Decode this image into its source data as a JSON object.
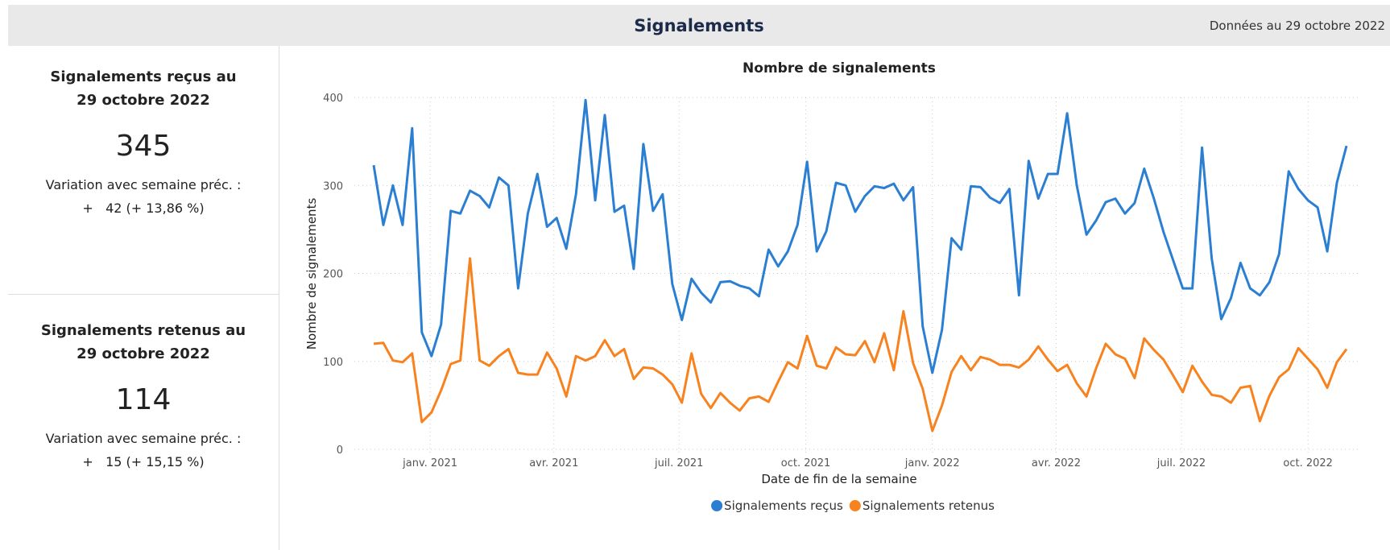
{
  "header": {
    "title": "Signalements",
    "date": "Données au 29 octobre 2022"
  },
  "cards": [
    {
      "title": "Signalements reçus au 29 octobre 2022",
      "value": "345",
      "variation_label": "Variation avec semaine préc. :",
      "change": "+   42 (+ 13,86 %)"
    },
    {
      "title": "Signalements retenus au 29 octobre 2022",
      "value": "114",
      "variation_label": "Variation avec semaine préc. :",
      "change": "+   15 (+ 15,15 %)"
    }
  ],
  "chart_data": {
    "type": "line",
    "title": "Nombre de signalements",
    "x_label": "Date de fin de la semaine",
    "y_label": "Nombre de signalements",
    "x": [
      0,
      1,
      2,
      3,
      4,
      5,
      6,
      7,
      8,
      9,
      10,
      11,
      12,
      13,
      14,
      15,
      16,
      17,
      18,
      19,
      20,
      21,
      22,
      23,
      24,
      25,
      26,
      27,
      28,
      29,
      30,
      31,
      32,
      33,
      34,
      35,
      36,
      37,
      38,
      39,
      40,
      41,
      42,
      43,
      44,
      45,
      46,
      47,
      48,
      49,
      50,
      51,
      52,
      53,
      54,
      55,
      56,
      57,
      58,
      59,
      60,
      61,
      62,
      63,
      64,
      65,
      66,
      67,
      68,
      69,
      70,
      71,
      72,
      73,
      74,
      75,
      76,
      77,
      78,
      79,
      80,
      81,
      82,
      83,
      84,
      85,
      86,
      87,
      88,
      89,
      90,
      91,
      92,
      93,
      94,
      95,
      96,
      97,
      98,
      99,
      100,
      101
    ],
    "series": [
      {
        "name": "Signalements reçus",
        "color": "#2b7fd3",
        "values": [
          323,
          255,
          300,
          255,
          365,
          133,
          106,
          142,
          271,
          268,
          294,
          288,
          275,
          309,
          300,
          183,
          268,
          313,
          253,
          263,
          228,
          290,
          397,
          283,
          380,
          270,
          277,
          205,
          347,
          271,
          290,
          188,
          147,
          194,
          178,
          167,
          190,
          191,
          186,
          183,
          174,
          227,
          208,
          225,
          255,
          327,
          225,
          248,
          303,
          300,
          270,
          288,
          299,
          297,
          302,
          283,
          298,
          140,
          87,
          136,
          240,
          227,
          299,
          298,
          286,
          280,
          296,
          175,
          328,
          285,
          313,
          313,
          382,
          300,
          244,
          260,
          281,
          285,
          268,
          280,
          319,
          285,
          247,
          215,
          183,
          183,
          343,
          217,
          148,
          172,
          212,
          183,
          175,
          190,
          222,
          316,
          296,
          283,
          275,
          225,
          303,
          345
        ]
      },
      {
        "name": "Signalements retenus",
        "color": "#f7821e",
        "values": [
          120,
          121,
          101,
          99,
          109,
          31,
          42,
          67,
          97,
          101,
          217,
          101,
          95,
          106,
          114,
          87,
          85,
          85,
          110,
          92,
          60,
          106,
          101,
          106,
          124,
          106,
          114,
          80,
          93,
          92,
          85,
          74,
          53,
          109,
          63,
          47,
          64,
          53,
          44,
          58,
          60,
          54,
          77,
          99,
          92,
          129,
          95,
          92,
          116,
          108,
          107,
          123,
          99,
          132,
          90,
          157,
          98,
          69,
          21,
          50,
          88,
          106,
          90,
          105,
          102,
          96,
          96,
          93,
          102,
          117,
          102,
          89,
          96,
          75,
          60,
          92,
          120,
          108,
          103,
          81,
          126,
          113,
          102,
          84,
          65,
          95,
          77,
          62,
          60,
          53,
          70,
          72,
          32,
          61,
          82,
          91,
          115,
          103,
          91,
          70,
          99,
          114
        ]
      }
    ],
    "xlim": [
      0,
      101
    ],
    "xticks": [
      {
        "value": 5.86,
        "label": "janv. 2021"
      },
      {
        "value": 18.71,
        "label": "avr. 2021"
      },
      {
        "value": 31.71,
        "label": "juil. 2021"
      },
      {
        "value": 44.86,
        "label": "oct. 2021"
      },
      {
        "value": 58,
        "label": "janv. 2022"
      },
      {
        "value": 70.86,
        "label": "avr. 2022"
      },
      {
        "value": 83.86,
        "label": "juil. 2022"
      },
      {
        "value": 97,
        "label": "oct. 2022"
      }
    ],
    "ylim": [
      0,
      400
    ],
    "yticks": [
      0,
      100,
      200,
      300,
      400
    ],
    "grid": true,
    "legend": "bottom"
  }
}
